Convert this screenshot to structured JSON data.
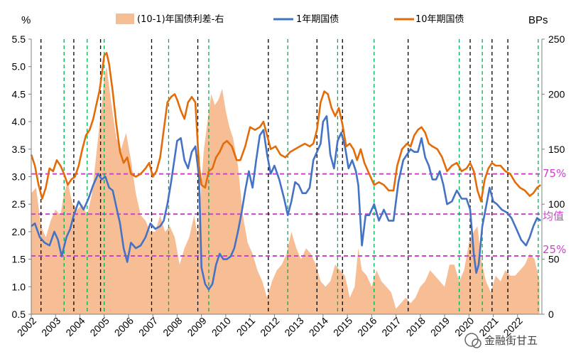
{
  "chart_data": {
    "type": "line",
    "left_axis": {
      "unit": "%",
      "min": 0.5,
      "max": 5.5,
      "step": 0.5,
      "ticks": [
        "0.5",
        "1.0",
        "1.5",
        "2.0",
        "2.5",
        "3.0",
        "3.5",
        "4.0",
        "4.5",
        "5.0",
        "5.5"
      ]
    },
    "right_axis": {
      "unit": "BPs",
      "min": 0,
      "max": 250,
      "step": 50,
      "ticks": [
        "0",
        "50",
        "100",
        "150",
        "200",
        "250"
      ]
    },
    "x_axis": {
      "start": 2002.0,
      "end": 2023.0,
      "labels": [
        "2002",
        "2003",
        "2004",
        "2005",
        "2006",
        "2007",
        "2008",
        "2009",
        "2010",
        "2011",
        "2012",
        "2013",
        "2014",
        "2015",
        "2016",
        "2017",
        "2018",
        "2019",
        "2020",
        "2021",
        "2022"
      ]
    },
    "legend": [
      "(10-1)年国债利差-右",
      "1年期国债",
      "10年期国债"
    ],
    "colors": {
      "spread": "#f7be95",
      "y1": "#4472c4",
      "y10": "#e36c0a",
      "ref_line": "#cc44cc",
      "black_dash": "#000000",
      "green_dash": "#00b050"
    },
    "series": [
      {
        "name": "1年期国债",
        "axis": "left",
        "x": [
          2002.0,
          2002.15,
          2002.35,
          2002.55,
          2002.75,
          2002.95,
          2003.1,
          2003.25,
          2003.45,
          2003.6,
          2003.75,
          2003.95,
          2004.15,
          2004.35,
          2004.55,
          2004.75,
          2004.9,
          2005.05,
          2005.2,
          2005.35,
          2005.5,
          2005.65,
          2005.8,
          2005.95,
          2006.1,
          2006.3,
          2006.5,
          2006.7,
          2006.9,
          2007.1,
          2007.3,
          2007.45,
          2007.6,
          2007.75,
          2007.9,
          2008.0,
          2008.15,
          2008.3,
          2008.45,
          2008.6,
          2008.75,
          2008.9,
          2009.0,
          2009.15,
          2009.3,
          2009.45,
          2009.6,
          2009.75,
          2009.9,
          2010.05,
          2010.2,
          2010.35,
          2010.5,
          2010.65,
          2010.8,
          2010.95,
          2011.1,
          2011.25,
          2011.4,
          2011.55,
          2011.7,
          2011.85,
          2012.0,
          2012.2,
          2012.4,
          2012.55,
          2012.7,
          2012.85,
          2013.0,
          2013.15,
          2013.3,
          2013.45,
          2013.6,
          2013.75,
          2013.9,
          2014.0,
          2014.15,
          2014.3,
          2014.45,
          2014.6,
          2014.75,
          2014.9,
          2015.05,
          2015.2,
          2015.35,
          2015.45,
          2015.6,
          2015.75,
          2015.9,
          2016.1,
          2016.3,
          2016.5,
          2016.7,
          2016.9,
          2017.1,
          2017.3,
          2017.45,
          2017.6,
          2017.75,
          2017.9,
          2018.05,
          2018.2,
          2018.35,
          2018.5,
          2018.65,
          2018.8,
          2018.95,
          2019.1,
          2019.3,
          2019.5,
          2019.7,
          2019.9,
          2020.05,
          2020.2,
          2020.3,
          2020.4,
          2020.55,
          2020.7,
          2020.85,
          2021.0,
          2021.15,
          2021.35,
          2021.55,
          2021.75,
          2021.95,
          2022.15,
          2022.35,
          2022.5,
          2022.65,
          2022.8,
          2022.95
        ],
        "values": [
          2.1,
          2.15,
          1.9,
          1.8,
          1.75,
          2.0,
          1.85,
          1.55,
          1.9,
          2.05,
          2.3,
          2.55,
          2.4,
          2.6,
          2.85,
          3.05,
          2.95,
          3.0,
          2.8,
          2.75,
          2.45,
          2.15,
          1.7,
          1.45,
          1.8,
          1.7,
          1.75,
          1.9,
          2.15,
          2.05,
          2.1,
          2.2,
          2.5,
          2.9,
          3.35,
          3.65,
          3.7,
          3.3,
          3.15,
          3.45,
          3.55,
          3.0,
          1.35,
          1.05,
          0.95,
          1.05,
          1.4,
          1.6,
          1.5,
          1.5,
          1.55,
          1.7,
          2.0,
          2.35,
          2.75,
          3.1,
          2.8,
          3.3,
          3.75,
          3.85,
          3.4,
          3.05,
          3.2,
          2.95,
          2.6,
          2.3,
          2.55,
          2.9,
          2.85,
          2.7,
          2.7,
          2.8,
          3.3,
          3.45,
          3.6,
          4.0,
          4.1,
          3.4,
          3.15,
          3.65,
          3.8,
          3.55,
          3.15,
          3.3,
          3.1,
          2.85,
          1.75,
          2.3,
          2.3,
          2.5,
          2.2,
          2.4,
          2.2,
          2.2,
          2.9,
          3.3,
          3.4,
          3.5,
          3.45,
          3.45,
          3.7,
          3.35,
          3.2,
          2.95,
          2.95,
          3.1,
          2.85,
          2.5,
          2.55,
          2.75,
          2.6,
          2.6,
          2.4,
          1.6,
          1.25,
          1.4,
          2.1,
          2.45,
          2.8,
          2.55,
          2.5,
          2.4,
          2.35,
          2.25,
          2.05,
          1.85,
          1.75,
          1.9,
          2.1,
          2.25,
          2.2
        ]
      },
      {
        "name": "10年期国债",
        "axis": "left",
        "x": [
          2002.0,
          2002.15,
          2002.3,
          2002.45,
          2002.6,
          2002.75,
          2002.9,
          2003.05,
          2003.2,
          2003.35,
          2003.5,
          2003.65,
          2003.8,
          2003.95,
          2004.1,
          2004.25,
          2004.4,
          2004.55,
          2004.7,
          2004.8,
          2004.9,
          2005.0,
          2005.1,
          2005.2,
          2005.35,
          2005.5,
          2005.65,
          2005.8,
          2005.95,
          2006.1,
          2006.3,
          2006.5,
          2006.7,
          2006.85,
          2007.0,
          2007.15,
          2007.3,
          2007.45,
          2007.6,
          2007.75,
          2007.9,
          2008.0,
          2008.15,
          2008.3,
          2008.45,
          2008.6,
          2008.75,
          2008.9,
          2009.0,
          2009.15,
          2009.3,
          2009.45,
          2009.6,
          2009.75,
          2009.9,
          2010.05,
          2010.25,
          2010.45,
          2010.6,
          2010.8,
          2011.0,
          2011.2,
          2011.4,
          2011.55,
          2011.7,
          2011.85,
          2012.05,
          2012.25,
          2012.45,
          2012.65,
          2012.85,
          2013.05,
          2013.25,
          2013.45,
          2013.6,
          2013.75,
          2013.9,
          2014.05,
          2014.2,
          2014.35,
          2014.5,
          2014.65,
          2014.8,
          2014.95,
          2015.1,
          2015.25,
          2015.4,
          2015.55,
          2015.7,
          2015.9,
          2016.1,
          2016.3,
          2016.5,
          2016.7,
          2016.9,
          2017.05,
          2017.25,
          2017.45,
          2017.6,
          2017.75,
          2017.9,
          2018.05,
          2018.2,
          2018.35,
          2018.5,
          2018.7,
          2018.9,
          2019.1,
          2019.3,
          2019.5,
          2019.7,
          2019.9,
          2020.05,
          2020.2,
          2020.35,
          2020.5,
          2020.65,
          2020.8,
          2020.95,
          2021.1,
          2021.3,
          2021.5,
          2021.7,
          2021.9,
          2022.1,
          2022.3,
          2022.5,
          2022.65,
          2022.8,
          2022.95
        ],
        "values": [
          3.4,
          3.2,
          2.85,
          2.6,
          2.8,
          3.15,
          3.1,
          3.3,
          3.2,
          3.05,
          2.85,
          2.95,
          3.0,
          3.2,
          3.5,
          3.75,
          3.85,
          4.05,
          4.35,
          4.55,
          4.85,
          5.2,
          5.25,
          5.05,
          4.55,
          3.95,
          3.45,
          3.25,
          3.35,
          3.05,
          3.0,
          3.05,
          3.15,
          3.25,
          3.0,
          3.1,
          3.35,
          3.85,
          4.35,
          4.45,
          4.5,
          4.4,
          4.2,
          4.05,
          4.35,
          4.45,
          4.35,
          3.2,
          2.85,
          2.8,
          3.1,
          3.15,
          3.35,
          3.45,
          3.6,
          3.65,
          3.55,
          3.3,
          3.3,
          3.55,
          3.9,
          3.85,
          3.9,
          4.0,
          3.75,
          3.5,
          3.55,
          3.4,
          3.35,
          3.45,
          3.5,
          3.55,
          3.6,
          3.55,
          3.6,
          3.85,
          4.35,
          4.55,
          4.5,
          4.25,
          4.1,
          4.25,
          3.95,
          3.55,
          3.6,
          3.5,
          3.3,
          3.5,
          3.25,
          3.05,
          2.85,
          2.9,
          2.85,
          2.75,
          2.75,
          3.2,
          3.5,
          3.6,
          3.55,
          3.75,
          3.85,
          3.9,
          3.8,
          3.6,
          3.55,
          3.5,
          3.35,
          3.1,
          3.2,
          3.25,
          3.1,
          3.15,
          3.25,
          3.1,
          2.75,
          2.55,
          2.95,
          3.15,
          3.25,
          3.2,
          3.2,
          3.1,
          3.05,
          2.9,
          2.8,
          2.75,
          2.65,
          2.7,
          2.8,
          2.85
        ]
      },
      {
        "name": "(10-1)年国债利差-右",
        "axis": "right",
        "type": "area",
        "x": [
          2002.0,
          2002.2,
          2002.4,
          2002.6,
          2002.8,
          2003.0,
          2003.2,
          2003.35,
          2003.5,
          2003.7,
          2003.9,
          2004.1,
          2004.3,
          2004.5,
          2004.7,
          2004.9,
          2005.0,
          2005.1,
          2005.3,
          2005.5,
          2005.7,
          2005.9,
          2006.1,
          2006.3,
          2006.5,
          2006.7,
          2006.9,
          2007.1,
          2007.3,
          2007.5,
          2007.7,
          2007.9,
          2008.1,
          2008.3,
          2008.5,
          2008.7,
          2008.85,
          2009.0,
          2009.1,
          2009.25,
          2009.4,
          2009.55,
          2009.7,
          2009.85,
          2010.0,
          2010.15,
          2010.3,
          2010.5,
          2010.7,
          2010.9,
          2011.1,
          2011.3,
          2011.5,
          2011.7,
          2011.9,
          2012.1,
          2012.3,
          2012.5,
          2012.7,
          2012.9,
          2013.1,
          2013.3,
          2013.5,
          2013.7,
          2013.9,
          2014.1,
          2014.3,
          2014.5,
          2014.7,
          2014.9,
          2015.1,
          2015.3,
          2015.45,
          2015.6,
          2015.8,
          2016.0,
          2016.2,
          2016.4,
          2016.6,
          2016.8,
          2017.0,
          2017.2,
          2017.4,
          2017.6,
          2017.8,
          2018.0,
          2018.2,
          2018.4,
          2018.6,
          2018.8,
          2019.0,
          2019.2,
          2019.4,
          2019.6,
          2019.8,
          2020.0,
          2020.2,
          2020.35,
          2020.5,
          2020.7,
          2020.9,
          2021.1,
          2021.3,
          2021.5,
          2021.7,
          2021.9,
          2022.1,
          2022.3,
          2022.5,
          2022.7,
          2022.9
        ],
        "values": [
          110,
          115,
          80,
          70,
          85,
          95,
          90,
          110,
          120,
          100,
          95,
          100,
          90,
          110,
          150,
          190,
          215,
          225,
          190,
          160,
          150,
          165,
          140,
          110,
          90,
          85,
          75,
          75,
          90,
          75,
          80,
          70,
          45,
          60,
          70,
          90,
          70,
          120,
          150,
          175,
          200,
          190,
          195,
          205,
          185,
          170,
          160,
          135,
          90,
          65,
          55,
          40,
          30,
          15,
          30,
          40,
          45,
          55,
          75,
          60,
          50,
          60,
          55,
          45,
          30,
          25,
          30,
          45,
          40,
          35,
          15,
          25,
          60,
          40,
          35,
          25,
          40,
          30,
          25,
          20,
          5,
          10,
          15,
          10,
          15,
          25,
          30,
          40,
          35,
          30,
          25,
          45,
          45,
          30,
          40,
          65,
          75,
          80,
          50,
          30,
          20,
          35,
          30,
          40,
          35,
          35,
          40,
          45,
          55,
          50,
          30
        ]
      }
    ],
    "reference_lines": [
      {
        "label": "75%",
        "value": 3.05
      },
      {
        "label": "均值",
        "value": 2.32
      },
      {
        "label": "25%",
        "value": 1.56
      }
    ],
    "black_dashed_x": [
      2002.4,
      2003.75,
      2004.85,
      2006.95,
      2008.85,
      2011.75,
      2013.75,
      2014.8,
      2017.5,
      2020.05,
      2020.95,
      2021.6
    ],
    "green_dashed_x": [
      2003.35,
      2004.3,
      2005.0,
      2007.65,
      2009.3,
      2012.55,
      2014.6,
      2016.1,
      2019.6,
      2020.55,
      2022.85
    ]
  },
  "watermark": {
    "text": "金融街甘五"
  }
}
